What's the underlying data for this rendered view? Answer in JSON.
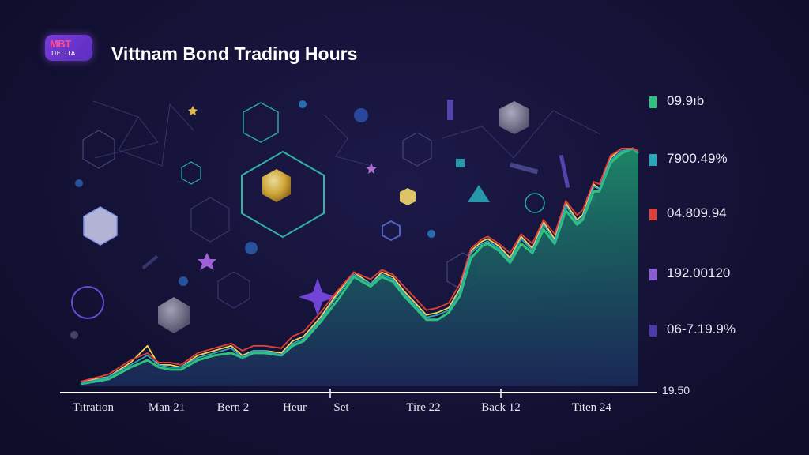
{
  "header": {
    "logo_top": "MBT",
    "logo_bottom": "DELITA",
    "title": "Vittnam Bond Trading Hours"
  },
  "legend": {
    "items": [
      {
        "label": "09.9ıb",
        "color": "#2ec27e"
      },
      {
        "label": "7900.49%",
        "color": "#2aa7b8"
      },
      {
        "label": "04.809.94",
        "color": "#e0403a"
      },
      {
        "label": "192.00120",
        "color": "#8a5ad8"
      },
      {
        "label": "06-7.19.9%",
        "color": "#4a3aa8"
      }
    ]
  },
  "chart_data": {
    "type": "area",
    "title": "Vittnam Bond Trading Hours",
    "xlabel": "",
    "ylabel": "",
    "x_tick_labels": [
      "Titration",
      "Man 21",
      "Bern 2",
      "Heur",
      "Set",
      "Tire 22",
      "Back 12",
      "Titen 24"
    ],
    "y_end_label": "19.50",
    "xlim": [
      0,
      100
    ],
    "ylim": [
      0,
      100
    ],
    "grid": false,
    "legend_position": "right",
    "x": [
      0,
      5,
      9,
      12,
      14,
      16,
      18,
      21,
      24,
      27,
      29,
      31,
      33,
      36,
      38,
      40,
      43,
      46,
      49,
      52,
      54,
      56,
      58,
      60,
      62,
      64,
      66,
      68,
      70,
      72,
      73,
      75,
      77,
      79,
      81,
      83,
      85,
      87,
      89,
      90,
      92,
      93,
      95,
      97,
      99,
      100
    ],
    "series": [
      {
        "color": "#2ec27e",
        "fill": true,
        "values": [
          1,
          3,
          8,
          11,
          8,
          7,
          7,
          11,
          13,
          14,
          12,
          14,
          14,
          13,
          17,
          19,
          27,
          36,
          46,
          42,
          46,
          44,
          38,
          33,
          28,
          28,
          31,
          38,
          54,
          59,
          60,
          57,
          52,
          60,
          56,
          66,
          60,
          74,
          68,
          70,
          82,
          82,
          94,
          98,
          100,
          98
        ]
      },
      {
        "color": "#f2d25a",
        "fill": false,
        "values": [
          2,
          4,
          10,
          17,
          9,
          9,
          8,
          13,
          15,
          17,
          13,
          15,
          15,
          14,
          19,
          21,
          29,
          39,
          48,
          43,
          48,
          46,
          40,
          35,
          30,
          31,
          33,
          41,
          57,
          61,
          62,
          59,
          54,
          63,
          58,
          69,
          62,
          77,
          70,
          72,
          85,
          83,
          96,
          100,
          100,
          99
        ]
      },
      {
        "color": "#2aa7b8",
        "fill": false,
        "values": [
          1,
          4,
          9,
          13,
          9,
          8,
          8,
          12,
          14,
          16,
          12,
          15,
          15,
          13,
          18,
          20,
          28,
          38,
          47,
          43,
          47,
          45,
          39,
          34,
          29,
          30,
          32,
          40,
          56,
          60,
          61,
          58,
          53,
          62,
          57,
          68,
          61,
          76,
          69,
          71,
          84,
          83,
          95,
          99,
          100,
          98
        ]
      },
      {
        "color": "#e0403a",
        "fill": false,
        "values": [
          2,
          5,
          11,
          14,
          10,
          10,
          9,
          14,
          16,
          18,
          15,
          17,
          17,
          16,
          21,
          23,
          31,
          40,
          48,
          45,
          49,
          47,
          42,
          37,
          32,
          33,
          35,
          43,
          58,
          62,
          63,
          60,
          56,
          64,
          60,
          70,
          64,
          78,
          72,
          74,
          86,
          85,
          97,
          100,
          100,
          99
        ]
      }
    ]
  }
}
